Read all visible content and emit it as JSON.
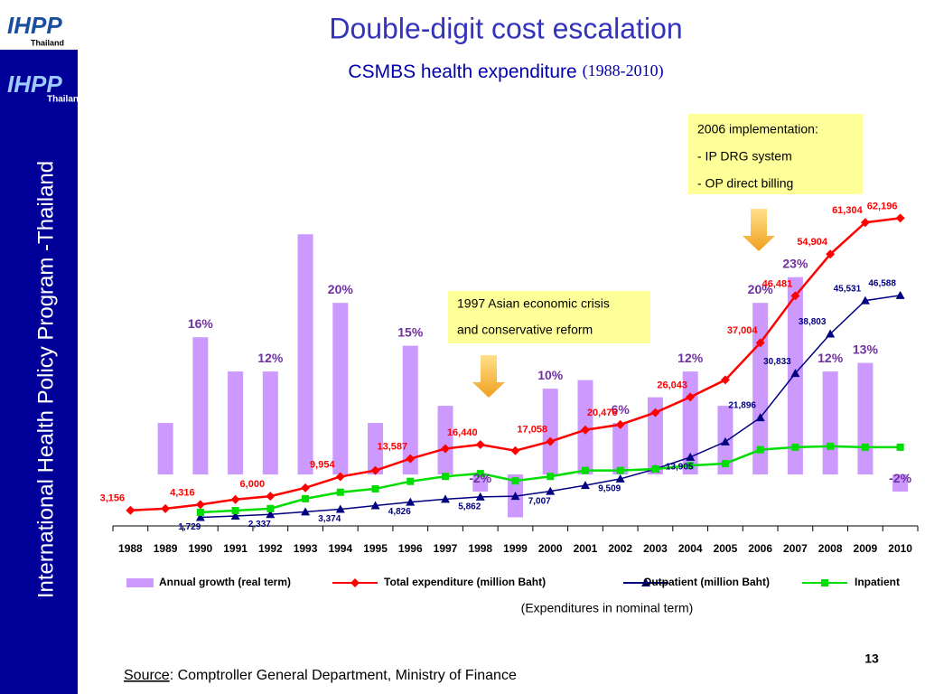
{
  "slide": {
    "logo": "IHPP",
    "logo_sub": "Thailand",
    "sidebar": "International Health Policy Program -Thailand",
    "title": "Double-digit cost escalation",
    "subtitle": "CSMBS health expenditure",
    "subtitle_years": "(1988-2010)",
    "note": "(Expenditures in nominal term)",
    "source_label": "Source",
    "source_text": ": Comptroller General Department, Ministry of Finance",
    "page": "13"
  },
  "chart_data": {
    "type": "bar",
    "categories": [
      "1988",
      "1989",
      "1990",
      "1991",
      "1992",
      "1993",
      "1994",
      "1995",
      "1996",
      "1997",
      "1998",
      "1999",
      "2000",
      "2001",
      "2002",
      "2003",
      "2004",
      "2005",
      "2006",
      "2007",
      "2008",
      "2009",
      "2010"
    ],
    "ylim": [
      -6,
      31.5
    ],
    "y2lim": [
      0,
      65000
    ],
    "annotations": [
      [
        "2006 implementation:",
        "- IP DRG system",
        "- OP direct billing"
      ],
      [
        "1997 Asian economic crisis",
        "and conservative reform"
      ]
    ],
    "series": [
      {
        "name": "Annual growth (real term)",
        "type": "bar",
        "color": "#cc99ff",
        "axis": "y",
        "values": [
          null,
          6,
          16,
          12,
          12,
          28,
          20,
          6,
          15,
          8,
          -2,
          -5,
          10,
          11,
          6,
          9,
          12,
          8,
          20,
          23,
          12,
          13,
          -2
        ],
        "value_labels": [
          null,
          null,
          "16%",
          null,
          "12%",
          null,
          "20%",
          null,
          "15%",
          null,
          "-2%",
          null,
          "10%",
          null,
          "6%",
          null,
          "12%",
          null,
          "20%",
          "23%",
          "12%",
          "13%",
          "-2%"
        ]
      },
      {
        "name": "Total expenditure (million Baht)",
        "type": "line",
        "marker": "diamond",
        "color": "#ff0000",
        "axis": "y2",
        "values": [
          3156,
          3500,
          4316,
          5350,
          6000,
          7700,
          9954,
          11200,
          13587,
          15600,
          16440,
          15200,
          17058,
          19400,
          20476,
          22900,
          26043,
          29500,
          37004,
          46481,
          54904,
          61304,
          62196
        ],
        "value_labels": [
          "3,156",
          null,
          "4,316",
          null,
          "6,000",
          null,
          "9,954",
          null,
          "13,587",
          null,
          "16,440",
          null,
          "17,058",
          null,
          "20,476",
          null,
          "26,043",
          null,
          "37,004",
          "46,481",
          "54,904",
          "61,304",
          "62,196"
        ]
      },
      {
        "name": "Outpatient (million Baht)",
        "type": "line",
        "marker": "triangle",
        "color": "#000080",
        "axis": "y2",
        "values": [
          null,
          null,
          1729,
          2000,
          2337,
          2850,
          3374,
          4100,
          4826,
          5400,
          5862,
          6000,
          7007,
          8200,
          9509,
          11500,
          13905,
          17000,
          21896,
          30833,
          38803,
          45531,
          46588
        ],
        "value_labels": [
          null,
          null,
          "1,729",
          null,
          "2,337",
          null,
          "3,374",
          null,
          "4,826",
          null,
          "5,862",
          null,
          "7,007",
          null,
          "9,509",
          null,
          "13,905",
          null,
          "21,896",
          "30,833",
          "38,803",
          "45,531",
          "46,588"
        ]
      },
      {
        "name": "Inpatient",
        "type": "line",
        "marker": "square",
        "color": "#00dd00",
        "axis": "y2",
        "values": [
          null,
          null,
          2740,
          3100,
          3500,
          5500,
          6800,
          7500,
          9000,
          10000,
          10600,
          9100,
          10000,
          11200,
          11200,
          11500,
          12200,
          12600,
          15400,
          15900,
          16100,
          15900,
          15900
        ]
      }
    ]
  }
}
